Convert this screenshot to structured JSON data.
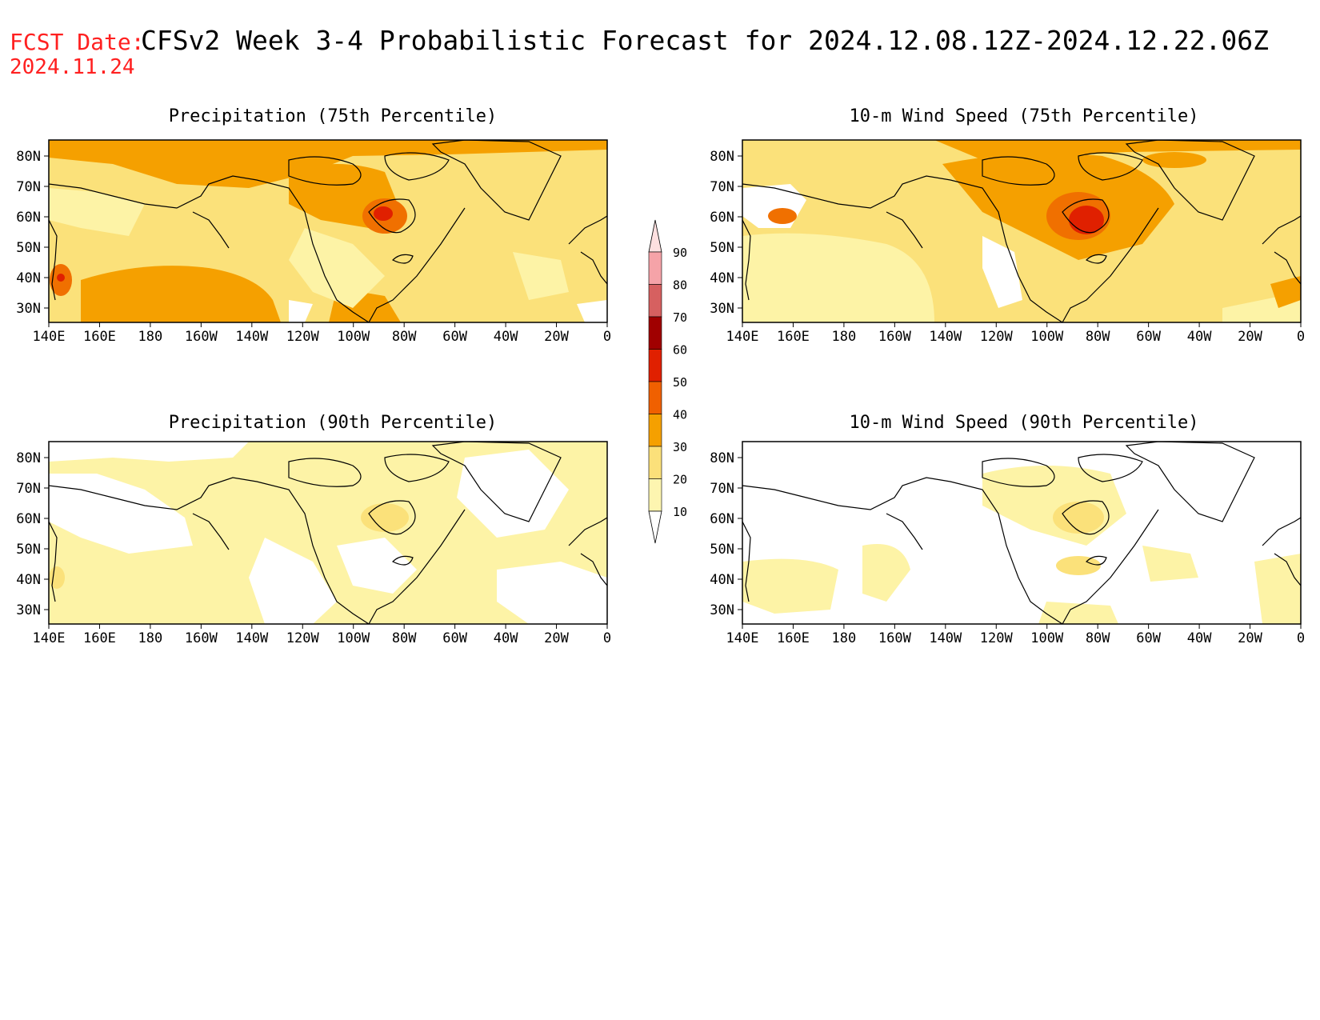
{
  "header": {
    "fcst_label": "FCST Date:",
    "fcst_date": "2024.11.24",
    "title": "CFSv2 Week 3-4 Probabilistic Forecast for 2024.12.08.12Z-2024.12.22.06Z"
  },
  "axes": {
    "lat_ticks": [
      "80N",
      "70N",
      "60N",
      "50N",
      "40N",
      "30N"
    ],
    "lon_ticks": [
      "140E",
      "160E",
      "180",
      "160W",
      "140W",
      "120W",
      "100W",
      "80W",
      "60W",
      "40W",
      "20W",
      "0"
    ]
  },
  "panels": [
    {
      "title": "Precipitation (75th Percentile)"
    },
    {
      "title": "10-m Wind Speed (75th Percentile)"
    },
    {
      "title": "Precipitation (90th Percentile)"
    },
    {
      "title": "10-m Wind Speed (90th Percentile)"
    }
  ],
  "colorbar": {
    "labels": [
      "90",
      "80",
      "70",
      "60",
      "50",
      "40",
      "30",
      "20",
      "10"
    ],
    "colors": [
      "#fde0e0",
      "#f5a3a8",
      "#d66060",
      "#a00000",
      "#e02000",
      "#f06000",
      "#f5a000",
      "#fbe07a",
      "#fdf5b0"
    ]
  },
  "colors": {
    "white": "#ffffff",
    "pale_yellow": "#fdf3a6",
    "yellow": "#fbe17a",
    "orange": "#f5a000",
    "dark_orange": "#f07000",
    "red": "#e02000",
    "coast": "#000000",
    "title_red": "#ff2020"
  }
}
